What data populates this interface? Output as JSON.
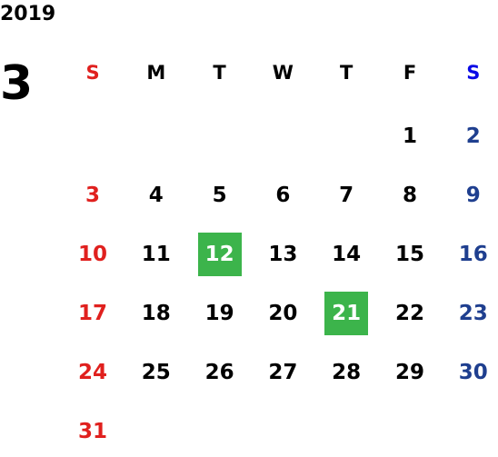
{
  "year": "2019",
  "month": "3",
  "weekdays": [
    "S",
    "M",
    "T",
    "W",
    "T",
    "F",
    "S"
  ],
  "weeks": [
    [
      null,
      null,
      null,
      null,
      null,
      "1",
      "2"
    ],
    [
      "3",
      "4",
      "5",
      "6",
      "7",
      "8",
      "9"
    ],
    [
      "10",
      "11",
      "12",
      "13",
      "14",
      "15",
      "16"
    ],
    [
      "17",
      "18",
      "19",
      "20",
      "21",
      "22",
      "23"
    ],
    [
      "24",
      "25",
      "26",
      "27",
      "28",
      "29",
      "30"
    ],
    [
      "31",
      null,
      null,
      null,
      null,
      null,
      null
    ]
  ],
  "highlighted": [
    "12",
    "21"
  ],
  "highlight_color": "#3cb44b",
  "sunday_color": "#e0201e",
  "saturday_header_color": "#0a0ae6",
  "saturday_color": "#1f3f8f"
}
